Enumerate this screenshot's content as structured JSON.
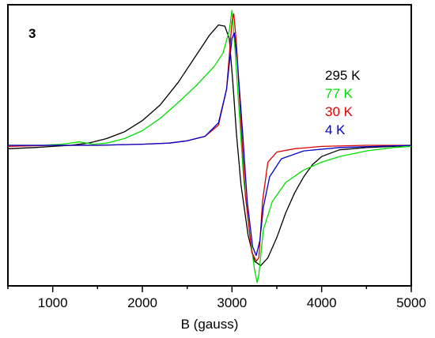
{
  "chart_data": {
    "type": "line",
    "panel_label": "3",
    "xlabel": "B (gauss)",
    "ylabel": "",
    "xlim": [
      500,
      5000
    ],
    "ylim": [
      -1.25,
      1.25
    ],
    "x_ticks": [
      1000,
      2000,
      3000,
      4000,
      5000
    ],
    "x_tick_labels": [
      "1000",
      "2000",
      "3000",
      "4000",
      "5000"
    ],
    "y_ticks_shown": false,
    "grid": false,
    "legend_position": "upper-right",
    "series": [
      {
        "name": "295 K",
        "color": "#000000",
        "points": [
          [
            500,
            -0.03
          ],
          [
            800,
            -0.02
          ],
          [
            1000,
            -0.01
          ],
          [
            1200,
            0.0
          ],
          [
            1400,
            0.02
          ],
          [
            1600,
            0.06
          ],
          [
            1800,
            0.12
          ],
          [
            2000,
            0.22
          ],
          [
            2200,
            0.36
          ],
          [
            2400,
            0.56
          ],
          [
            2600,
            0.8
          ],
          [
            2750,
            0.98
          ],
          [
            2850,
            1.07
          ],
          [
            2920,
            1.06
          ],
          [
            2970,
            0.95
          ],
          [
            3010,
            0.55
          ],
          [
            3050,
            0.1
          ],
          [
            3100,
            -0.35
          ],
          [
            3180,
            -0.8
          ],
          [
            3250,
            -1.03
          ],
          [
            3320,
            -1.07
          ],
          [
            3400,
            -1.0
          ],
          [
            3500,
            -0.82
          ],
          [
            3600,
            -0.6
          ],
          [
            3700,
            -0.42
          ],
          [
            3800,
            -0.28
          ],
          [
            3900,
            -0.17
          ],
          [
            4000,
            -0.1
          ],
          [
            4200,
            -0.04
          ],
          [
            4500,
            -0.02
          ],
          [
            4800,
            -0.01
          ],
          [
            5000,
            0.0
          ]
        ]
      },
      {
        "name": "77 K",
        "color": "#00dd00",
        "points": [
          [
            500,
            0.0
          ],
          [
            900,
            0.0
          ],
          [
            1100,
            0.01
          ],
          [
            1300,
            0.03
          ],
          [
            1450,
            0.01
          ],
          [
            1600,
            0.02
          ],
          [
            1800,
            0.06
          ],
          [
            2000,
            0.13
          ],
          [
            2200,
            0.24
          ],
          [
            2400,
            0.38
          ],
          [
            2600,
            0.53
          ],
          [
            2800,
            0.7
          ],
          [
            2900,
            0.82
          ],
          [
            2970,
            1.02
          ],
          [
            3000,
            1.2
          ],
          [
            3030,
            0.9
          ],
          [
            3080,
            0.3
          ],
          [
            3130,
            -0.3
          ],
          [
            3200,
            -0.8
          ],
          [
            3250,
            -1.1
          ],
          [
            3280,
            -1.22
          ],
          [
            3300,
            -1.15
          ],
          [
            3350,
            -0.75
          ],
          [
            3450,
            -0.5
          ],
          [
            3600,
            -0.33
          ],
          [
            3800,
            -0.22
          ],
          [
            4000,
            -0.15
          ],
          [
            4200,
            -0.1
          ],
          [
            4500,
            -0.05
          ],
          [
            4800,
            -0.02
          ],
          [
            5000,
            -0.01
          ]
        ]
      },
      {
        "name": "30 K",
        "color": "#dd0000",
        "points": [
          [
            500,
            -0.01
          ],
          [
            1000,
            0.0
          ],
          [
            1500,
            0.0
          ],
          [
            2000,
            0.01
          ],
          [
            2300,
            0.02
          ],
          [
            2500,
            0.04
          ],
          [
            2700,
            0.08
          ],
          [
            2850,
            0.18
          ],
          [
            2940,
            0.5
          ],
          [
            3000,
            1.1
          ],
          [
            3020,
            1.17
          ],
          [
            3050,
            0.9
          ],
          [
            3100,
            0.2
          ],
          [
            3150,
            -0.45
          ],
          [
            3220,
            -0.95
          ],
          [
            3270,
            -1.03
          ],
          [
            3300,
            -1.0
          ],
          [
            3340,
            -0.5
          ],
          [
            3400,
            -0.15
          ],
          [
            3500,
            -0.06
          ],
          [
            3700,
            -0.03
          ],
          [
            4000,
            -0.01
          ],
          [
            4500,
            0.0
          ],
          [
            5000,
            0.0
          ]
        ]
      },
      {
        "name": "4 K",
        "color": "#0000cc",
        "points": [
          [
            500,
            0.0
          ],
          [
            1000,
            0.0
          ],
          [
            1500,
            0.0
          ],
          [
            2000,
            0.01
          ],
          [
            2300,
            0.02
          ],
          [
            2500,
            0.04
          ],
          [
            2700,
            0.08
          ],
          [
            2850,
            0.2
          ],
          [
            2940,
            0.5
          ],
          [
            3000,
            0.95
          ],
          [
            3025,
            1.0
          ],
          [
            3060,
            0.75
          ],
          [
            3120,
            0.1
          ],
          [
            3170,
            -0.5
          ],
          [
            3230,
            -0.9
          ],
          [
            3270,
            -0.98
          ],
          [
            3310,
            -0.85
          ],
          [
            3350,
            -0.55
          ],
          [
            3420,
            -0.28
          ],
          [
            3550,
            -0.12
          ],
          [
            3800,
            -0.05
          ],
          [
            4200,
            -0.02
          ],
          [
            4600,
            -0.01
          ],
          [
            5000,
            0.0
          ]
        ]
      }
    ]
  }
}
